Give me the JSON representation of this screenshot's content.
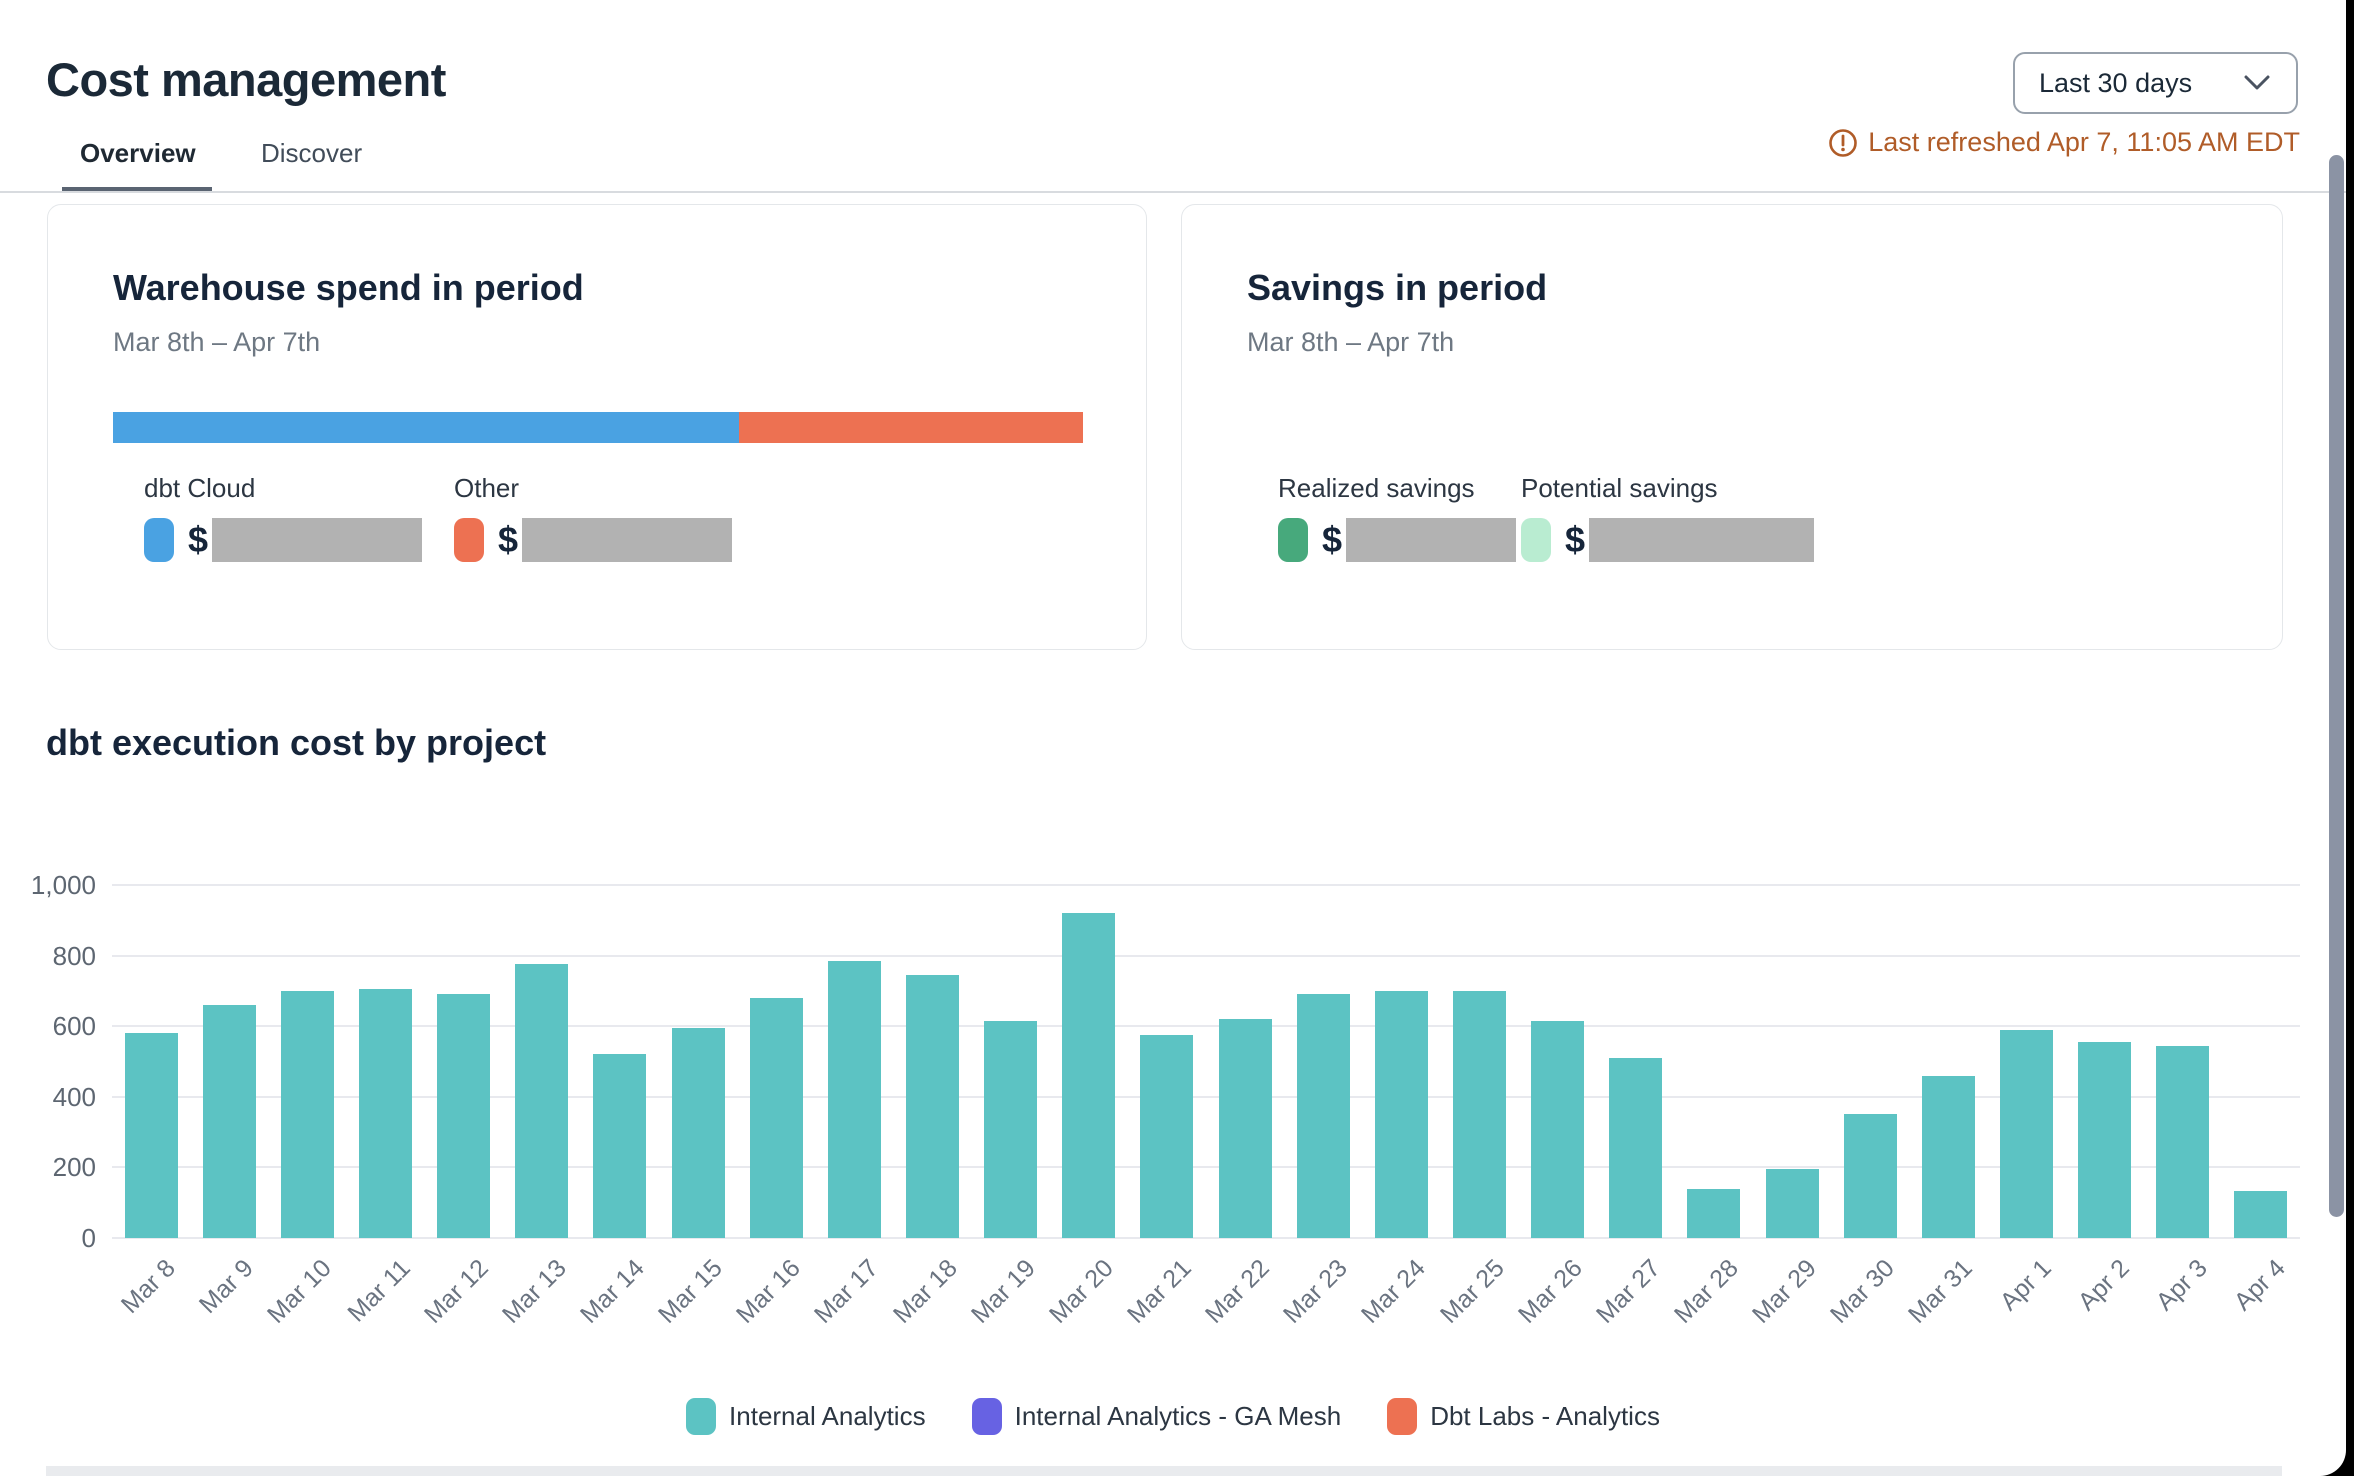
{
  "header": {
    "title": "Cost management",
    "tabs": [
      {
        "label": "Overview",
        "active": true
      },
      {
        "label": "Discover",
        "active": false
      }
    ],
    "period_selector": "Last 30 days",
    "last_refreshed": "Last refreshed Apr 7, 11:05 AM EDT",
    "refresh_color": "#b05c28"
  },
  "warehouse_card": {
    "title": "Warehouse spend in period",
    "subtitle": "Mar 8th – Apr 7th",
    "currency_symbol": "$",
    "segments": [
      {
        "label": "dbt Cloud",
        "color": "#4aa2e2",
        "pct": 64.5,
        "value_redacted": true
      },
      {
        "label": "Other",
        "color": "#ed7152",
        "pct": 35.5,
        "value_redacted": true
      }
    ]
  },
  "savings_card": {
    "title": "Savings in period",
    "subtitle": "Mar 8th – Apr 7th",
    "currency_symbol": "$",
    "items": [
      {
        "label": "Realized savings",
        "color": "#47a97c",
        "value_redacted": true
      },
      {
        "label": "Potential savings",
        "color": "#b9ecd1",
        "value_redacted": true
      }
    ]
  },
  "chart": {
    "title": "dbt execution cost by project"
  },
  "chart_data": {
    "type": "bar",
    "title": "dbt execution cost by project",
    "categories": [
      "Mar 8",
      "Mar 9",
      "Mar 10",
      "Mar 11",
      "Mar 12",
      "Mar 13",
      "Mar 14",
      "Mar 15",
      "Mar 16",
      "Mar 17",
      "Mar 18",
      "Mar 19",
      "Mar 20",
      "Mar 21",
      "Mar 22",
      "Mar 23",
      "Mar 24",
      "Mar 25",
      "Mar 26",
      "Mar 27",
      "Mar 28",
      "Mar 29",
      "Mar 30",
      "Mar 31",
      "Apr 1",
      "Apr 2",
      "Apr 3",
      "Apr 4"
    ],
    "series": [
      {
        "name": "Internal Analytics",
        "color": "#5cc3c3",
        "values": [
          580,
          660,
          700,
          705,
          690,
          775,
          520,
          595,
          680,
          785,
          745,
          615,
          920,
          575,
          620,
          690,
          700,
          700,
          615,
          510,
          140,
          195,
          350,
          460,
          590,
          555,
          545,
          132
        ]
      },
      {
        "name": "Internal Analytics - GA Mesh",
        "color": "#6762e3",
        "values": [
          0,
          0,
          0,
          0,
          0,
          0,
          0,
          0,
          0,
          0,
          0,
          0,
          0,
          0,
          0,
          0,
          0,
          0,
          0,
          0,
          0,
          0,
          0,
          0,
          0,
          0,
          0,
          0
        ]
      },
      {
        "name": "Dbt Labs - Analytics",
        "color": "#ed7152",
        "values": [
          0,
          0,
          0,
          0,
          0,
          0,
          0,
          0,
          0,
          0,
          0,
          0,
          0,
          0,
          0,
          0,
          0,
          0,
          0,
          0,
          0,
          0,
          0,
          0,
          0,
          0,
          0,
          0
        ]
      }
    ],
    "ylim": [
      0,
      1000
    ],
    "yticks": [
      "1,000",
      "800",
      "600",
      "400",
      "200",
      "0"
    ],
    "xlabel": "",
    "ylabel": "",
    "grid": true,
    "legend_position": "bottom"
  }
}
